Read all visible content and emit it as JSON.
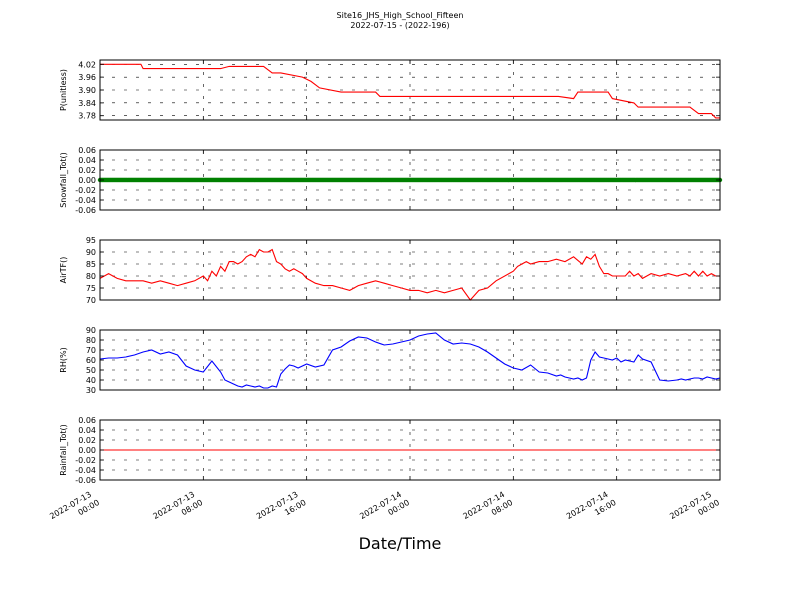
{
  "figure": {
    "title": "Site16_JHS_High_School_Fifteen",
    "subtitle": "2022-07-15 - (2022-196)",
    "xlabel": "Date/Time"
  },
  "chart_data": [
    {
      "type": "line",
      "ylabel": "P(unitless)",
      "ylim": [
        3.76,
        4.04
      ],
      "yticks": [
        "4.02",
        "3.96",
        "3.90",
        "3.84",
        "3.78"
      ],
      "ytick_values": [
        4.02,
        3.96,
        3.9,
        3.84,
        3.78
      ],
      "color": "#ff0000",
      "grid": true,
      "x_hours": [
        0,
        9.5,
        10,
        18,
        20,
        22,
        28,
        30,
        36,
        38,
        40,
        42,
        47,
        49,
        51,
        56,
        58,
        60,
        64,
        65,
        67,
        71,
        72,
        76,
        79,
        82,
        86,
        88,
        89,
        90,
        91,
        93,
        95,
        96,
        98,
        104,
        104.5,
        106,
        106.5,
        110,
        111,
        115,
        118,
        119,
        124,
        125,
        137,
        139,
        141,
        142,
        143,
        144
      ],
      "values": [
        4.02,
        4.02,
        4.0,
        4.0,
        4.0,
        4.0,
        4.0,
        4.01,
        4.01,
        4.01,
        3.98,
        3.98,
        3.96,
        3.94,
        3.91,
        3.89,
        3.89,
        3.89,
        3.89,
        3.87,
        3.87,
        3.87,
        3.87,
        3.87,
        3.87,
        3.87,
        3.87,
        3.87,
        3.87,
        3.87,
        3.87,
        3.87,
        3.87,
        3.87,
        3.87,
        3.87,
        3.87,
        3.87,
        3.87,
        3.86,
        3.89,
        3.89,
        3.89,
        3.86,
        3.84,
        3.82,
        3.82,
        3.79,
        3.79,
        3.79,
        3.77,
        3.77
      ]
    },
    {
      "type": "scatter",
      "ylabel": "Snowfall_Tot()",
      "ylim": [
        -0.06,
        0.06
      ],
      "yticks": [
        "0.06",
        "0.04",
        "0.02",
        "0.00",
        "-0.02",
        "-0.04",
        "-0.06"
      ],
      "ytick_values": [
        0.06,
        0.04,
        0.02,
        0.0,
        -0.02,
        -0.04,
        -0.06
      ],
      "color": "#008000",
      "grid": true,
      "constant_value": 0.0,
      "interval_hours": 0.25
    },
    {
      "type": "line",
      "ylabel": "AirTF()",
      "ylim": [
        70,
        95
      ],
      "yticks": [
        "95",
        "90",
        "85",
        "80",
        "75",
        "70"
      ],
      "ytick_values": [
        95,
        90,
        85,
        80,
        75,
        70
      ],
      "color": "#ff0000",
      "grid": true,
      "x_hours": [
        0,
        2,
        4,
        6,
        8,
        10,
        12,
        14,
        16,
        18,
        20,
        22,
        24,
        25,
        26,
        27,
        28,
        29,
        30,
        31,
        32,
        33,
        34,
        35,
        36,
        37,
        38,
        39,
        40,
        41,
        42,
        43,
        44,
        45,
        46,
        47,
        48,
        50,
        52,
        54,
        56,
        58,
        60,
        62,
        64,
        66,
        68,
        70,
        72,
        74,
        76,
        78,
        80,
        82,
        84,
        86,
        88,
        90,
        92,
        96,
        97,
        98,
        99,
        100,
        102,
        104,
        106,
        108,
        110,
        112,
        113,
        114,
        115,
        116,
        117,
        118,
        119,
        120,
        121,
        122,
        123,
        124,
        125,
        126,
        127,
        128,
        130,
        132,
        134,
        136,
        137,
        138,
        139,
        140,
        141,
        142,
        143,
        144
      ],
      "values": [
        79,
        81,
        79,
        78,
        78,
        78,
        77,
        78,
        77,
        76,
        77,
        78,
        80,
        78,
        82,
        80,
        84,
        82,
        86,
        86,
        85,
        86,
        88,
        89,
        88,
        91,
        90,
        90,
        91,
        86,
        85,
        83,
        82,
        83,
        82,
        81,
        79,
        77,
        76,
        76,
        75,
        74,
        76,
        77,
        78,
        77,
        76,
        75,
        74,
        74,
        73,
        74,
        73,
        74,
        75,
        70,
        74,
        75,
        78,
        82,
        84,
        85,
        86,
        85,
        86,
        86,
        87,
        86,
        88,
        85,
        88,
        87,
        89,
        84,
        81,
        81,
        80,
        80,
        80,
        80,
        82,
        80,
        81,
        79,
        80,
        81,
        80,
        81,
        80,
        81,
        80,
        82,
        80,
        82,
        80,
        81,
        80,
        80
      ]
    },
    {
      "type": "line",
      "ylabel": "RH(%)",
      "ylim": [
        30,
        90
      ],
      "yticks": [
        "90",
        "80",
        "70",
        "60",
        "50",
        "40",
        "30"
      ],
      "ytick_values": [
        90,
        80,
        70,
        60,
        50,
        40,
        30
      ],
      "color": "#0000ff",
      "grid": true,
      "x_hours": [
        0,
        2,
        4,
        6,
        8,
        10,
        12,
        14,
        16,
        18,
        20,
        22,
        24,
        26,
        28,
        29,
        30,
        31,
        32,
        33,
        34,
        35,
        36,
        37,
        38,
        39,
        40,
        41,
        42,
        43,
        44,
        45,
        46,
        48,
        50,
        52,
        54,
        56,
        58,
        60,
        62,
        64,
        66,
        68,
        70,
        72,
        74,
        76,
        78,
        80,
        82,
        84,
        86,
        88,
        90,
        92,
        94,
        96,
        98,
        100,
        102,
        104,
        106,
        107,
        108,
        109,
        110,
        111,
        112,
        113,
        114,
        115,
        116,
        117,
        118,
        119,
        120,
        121,
        122,
        123,
        124,
        125,
        126,
        128,
        130,
        132,
        134,
        135,
        136,
        137,
        138,
        139,
        140,
        141,
        142,
        143,
        144
      ],
      "values": [
        61,
        62,
        62,
        63,
        65,
        68,
        70,
        66,
        68,
        65,
        54,
        50,
        48,
        59,
        48,
        40,
        38,
        36,
        34,
        33,
        35,
        34,
        33,
        34,
        32,
        32,
        34,
        33,
        46,
        51,
        55,
        54,
        52,
        56,
        53,
        55,
        70,
        73,
        79,
        83,
        82,
        78,
        75,
        76,
        78,
        80,
        84,
        86,
        87,
        80,
        76,
        77,
        76,
        73,
        68,
        62,
        56,
        52,
        50,
        55,
        48,
        47,
        44,
        45,
        43,
        42,
        41,
        42,
        40,
        42,
        60,
        68,
        63,
        62,
        61,
        60,
        62,
        58,
        60,
        59,
        58,
        65,
        61,
        58,
        40,
        39,
        40,
        41,
        40,
        41,
        42,
        42,
        41,
        43,
        42,
        41,
        42
      ]
    },
    {
      "type": "line",
      "ylabel": "Rainfall_Tot()",
      "ylim": [
        -0.06,
        0.06
      ],
      "yticks": [
        "0.06",
        "0.04",
        "0.02",
        "0.00",
        "-0.02",
        "-0.04",
        "-0.06"
      ],
      "ytick_values": [
        0.06,
        0.04,
        0.02,
        0.0,
        -0.02,
        -0.04,
        -0.06
      ],
      "color": "#ff0000",
      "grid": true,
      "x_hours": [
        0,
        144
      ],
      "values": [
        0.0,
        0.0
      ]
    }
  ],
  "x_axis": {
    "tick_hours": [
      0,
      24,
      48,
      72,
      96,
      120,
      144
    ],
    "tick_labels": [
      [
        "2022-07-13",
        "00:00"
      ],
      [
        "2022-07-13",
        "08:00"
      ],
      [
        "2022-07-13",
        "16:00"
      ],
      [
        "2022-07-14",
        "00:00"
      ],
      [
        "2022-07-14",
        "08:00"
      ],
      [
        "2022-07-14",
        "16:00"
      ],
      [
        "2022-07-15",
        "00:00"
      ]
    ],
    "range_hours": [
      0,
      144
    ]
  }
}
